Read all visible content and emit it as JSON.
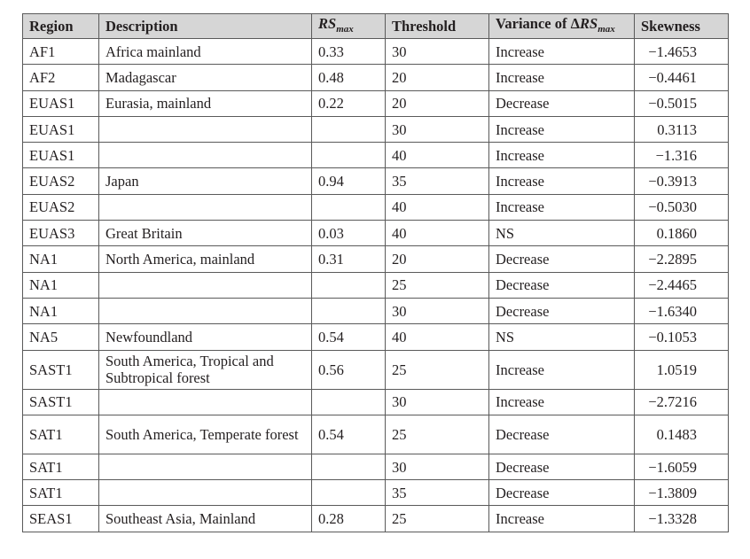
{
  "table": {
    "headers": {
      "region": "Region",
      "description": "Description",
      "rs_base": "RS",
      "rs_sub": "max",
      "threshold": "Threshold",
      "variance_prefix": "Variance of ",
      "variance_delta": "Δ",
      "variance_rs": "RS",
      "variance_sub": "max",
      "skewness": "Skewness"
    },
    "rows": [
      {
        "region": "AF1",
        "description": "Africa mainland",
        "rs": "0.33",
        "threshold": "30",
        "variance": "Increase",
        "skewness": "−1.4653"
      },
      {
        "region": "AF2",
        "description": "Madagascar",
        "rs": "0.48",
        "threshold": "20",
        "variance": "Increase",
        "skewness": "−0.4461"
      },
      {
        "region": "EUAS1",
        "description": "Eurasia, mainland",
        "rs": "0.22",
        "threshold": "20",
        "variance": "Decrease",
        "skewness": "−0.5015"
      },
      {
        "region": "EUAS1",
        "description": "",
        "rs": "",
        "threshold": "30",
        "variance": "Increase",
        "skewness": "0.3113"
      },
      {
        "region": "EUAS1",
        "description": "",
        "rs": "",
        "threshold": "40",
        "variance": "Increase",
        "skewness": "−1.316"
      },
      {
        "region": "EUAS2",
        "description": "Japan",
        "rs": "0.94",
        "threshold": "35",
        "variance": "Increase",
        "skewness": "−0.3913"
      },
      {
        "region": "EUAS2",
        "description": "",
        "rs": "",
        "threshold": "40",
        "variance": "Increase",
        "skewness": "−0.5030"
      },
      {
        "region": "EUAS3",
        "description": "Great Britain",
        "rs": "0.03",
        "threshold": "40",
        "variance": "NS",
        "skewness": "0.1860"
      },
      {
        "region": "NA1",
        "description": "North America, mainland",
        "rs": "0.31",
        "threshold": "20",
        "variance": "Decrease",
        "skewness": "−2.2895"
      },
      {
        "region": "NA1",
        "description": "",
        "rs": "",
        "threshold": "25",
        "variance": "Decrease",
        "skewness": "−2.4465"
      },
      {
        "region": "NA1",
        "description": "",
        "rs": "",
        "threshold": "30",
        "variance": "Decrease",
        "skewness": "−1.6340"
      },
      {
        "region": "NA5",
        "description": "Newfoundland",
        "rs": "0.54",
        "threshold": "40",
        "variance": "NS",
        "skewness": "−0.1053"
      },
      {
        "region": "SAST1",
        "description": "South America, Tropical and Subtropical forest",
        "rs": "0.56",
        "threshold": "25",
        "variance": "Increase",
        "skewness": "1.0519"
      },
      {
        "region": "SAST1",
        "description": "",
        "rs": "",
        "threshold": "30",
        "variance": "Increase",
        "skewness": "−2.7216"
      },
      {
        "region": "SAT1",
        "description": "South America, Temperate forest",
        "rs": "0.54",
        "threshold": "25",
        "variance": "Decrease",
        "skewness": "0.1483"
      },
      {
        "region": "SAT1",
        "description": "",
        "rs": "",
        "threshold": "30",
        "variance": "Decrease",
        "skewness": "−1.6059"
      },
      {
        "region": "SAT1",
        "description": "",
        "rs": "",
        "threshold": "35",
        "variance": "Decrease",
        "skewness": "−1.3809"
      },
      {
        "region": "SEAS1",
        "description": "Southeast Asia, Mainland",
        "rs": "0.28",
        "threshold": "25",
        "variance": "Increase",
        "skewness": "−1.3328"
      }
    ]
  }
}
